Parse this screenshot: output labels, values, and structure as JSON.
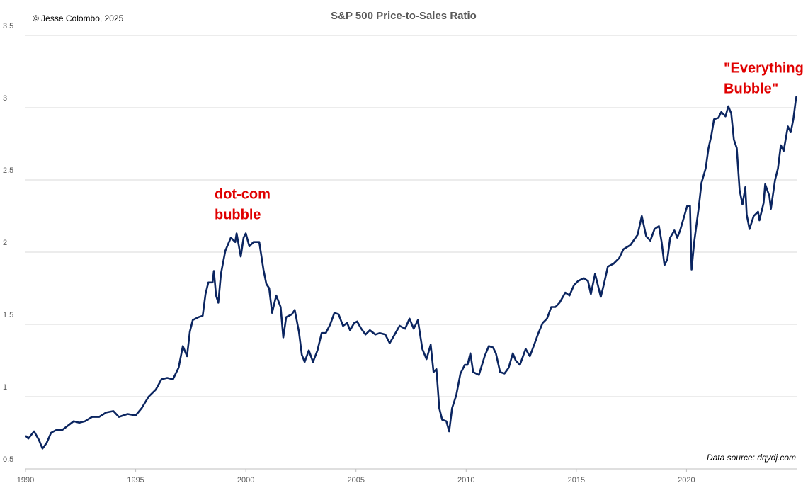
{
  "chart_data": {
    "type": "line",
    "title": "S&P 500 Price-to-Sales Ratio",
    "annotations": {
      "copyright": "© Jesse Colombo, 2025",
      "source": "Data source: dqydj.com",
      "dotcom": [
        "dot-com",
        "bubble"
      ],
      "everything": [
        "\"Everything",
        "Bubble\""
      ]
    },
    "color": "#0b2560",
    "annotation_color": "#e00000",
    "grid": true,
    "xlim": [
      1990,
      2025
    ],
    "xticks": [
      1990,
      1995,
      2000,
      2005,
      2010,
      2015,
      2020
    ],
    "ylim": [
      0.5,
      3.5
    ],
    "yticks": [
      0.5,
      1,
      1.5,
      2,
      2.5,
      3,
      3.5
    ],
    "x": [
      1990.0,
      1990.13,
      1990.39,
      1990.61,
      1990.77,
      1990.96,
      1991.16,
      1991.41,
      1991.67,
      1991.93,
      1992.19,
      1992.44,
      1992.7,
      1993.02,
      1993.34,
      1993.66,
      1993.99,
      1994.24,
      1994.63,
      1995.0,
      1995.27,
      1995.59,
      1995.92,
      1996.17,
      1996.43,
      1996.69,
      1996.95,
      1997.14,
      1997.33,
      1997.46,
      1997.59,
      1997.85,
      1998.04,
      1998.17,
      1998.3,
      1998.49,
      1998.55,
      1998.65,
      1998.75,
      1998.87,
      1999.07,
      1999.32,
      1999.52,
      1999.58,
      1999.77,
      1999.9,
      2000.0,
      2000.16,
      2000.35,
      2000.61,
      2000.8,
      2000.93,
      2001.06,
      2001.19,
      2001.38,
      2001.58,
      2001.7,
      2001.83,
      2002.09,
      2002.22,
      2002.41,
      2002.54,
      2002.67,
      2002.86,
      2003.05,
      2003.25,
      2003.44,
      2003.63,
      2003.83,
      2004.02,
      2004.21,
      2004.41,
      2004.6,
      2004.73,
      2004.92,
      2005.05,
      2005.24,
      2005.43,
      2005.63,
      2005.88,
      2006.08,
      2006.33,
      2006.53,
      2006.72,
      2006.98,
      2007.23,
      2007.43,
      2007.62,
      2007.81,
      2008.01,
      2008.2,
      2008.39,
      2008.52,
      2008.65,
      2008.78,
      2008.91,
      2009.1,
      2009.23,
      2009.36,
      2009.55,
      2009.74,
      2009.94,
      2010.06,
      2010.19,
      2010.32,
      2010.58,
      2010.84,
      2011.03,
      2011.22,
      2011.35,
      2011.54,
      2011.74,
      2011.93,
      2012.12,
      2012.25,
      2012.44,
      2012.7,
      2012.89,
      2013.09,
      2013.28,
      2013.47,
      2013.67,
      2013.86,
      2014.05,
      2014.24,
      2014.5,
      2014.69,
      2014.89,
      2015.08,
      2015.34,
      2015.53,
      2015.66,
      2015.85,
      2016.11,
      2016.24,
      2016.43,
      2016.69,
      2016.95,
      2017.14,
      2017.46,
      2017.78,
      2017.97,
      2018.17,
      2018.36,
      2018.55,
      2018.75,
      2018.87,
      2019.0,
      2019.13,
      2019.26,
      2019.45,
      2019.58,
      2019.71,
      2019.9,
      2020.03,
      2020.16,
      2020.23,
      2020.35,
      2020.55,
      2020.68,
      2020.87,
      2021.0,
      2021.13,
      2021.25,
      2021.45,
      2021.58,
      2021.77,
      2021.9,
      2022.03,
      2022.15,
      2022.28,
      2022.41,
      2022.54,
      2022.67,
      2022.73,
      2022.86,
      2023.05,
      2023.25,
      2023.31,
      2023.5,
      2023.57,
      2023.76,
      2023.83,
      2024.02,
      2024.15,
      2024.28,
      2024.41,
      2024.6,
      2024.73,
      2024.85,
      2024.95,
      2024.99
    ],
    "values": [
      0.73,
      0.71,
      0.76,
      0.7,
      0.64,
      0.68,
      0.75,
      0.77,
      0.77,
      0.8,
      0.83,
      0.82,
      0.83,
      0.86,
      0.86,
      0.89,
      0.9,
      0.86,
      0.88,
      0.87,
      0.92,
      1.0,
      1.05,
      1.12,
      1.13,
      1.12,
      1.2,
      1.35,
      1.28,
      1.45,
      1.53,
      1.55,
      1.56,
      1.71,
      1.79,
      1.79,
      1.87,
      1.7,
      1.65,
      1.85,
      2.01,
      2.1,
      2.07,
      2.13,
      1.97,
      2.1,
      2.13,
      2.04,
      2.07,
      2.07,
      1.88,
      1.78,
      1.75,
      1.58,
      1.7,
      1.62,
      1.41,
      1.55,
      1.57,
      1.6,
      1.45,
      1.29,
      1.24,
      1.32,
      1.24,
      1.32,
      1.44,
      1.44,
      1.5,
      1.58,
      1.57,
      1.49,
      1.51,
      1.46,
      1.51,
      1.52,
      1.47,
      1.43,
      1.46,
      1.43,
      1.44,
      1.43,
      1.37,
      1.42,
      1.49,
      1.47,
      1.54,
      1.47,
      1.53,
      1.33,
      1.26,
      1.36,
      1.17,
      1.19,
      0.92,
      0.84,
      0.83,
      0.76,
      0.92,
      1.01,
      1.16,
      1.22,
      1.22,
      1.3,
      1.17,
      1.15,
      1.28,
      1.35,
      1.34,
      1.3,
      1.17,
      1.16,
      1.2,
      1.3,
      1.25,
      1.22,
      1.33,
      1.28,
      1.36,
      1.44,
      1.51,
      1.54,
      1.62,
      1.62,
      1.65,
      1.72,
      1.7,
      1.77,
      1.8,
      1.82,
      1.8,
      1.71,
      1.85,
      1.69,
      1.77,
      1.9,
      1.92,
      1.96,
      2.02,
      2.05,
      2.12,
      2.25,
      2.11,
      2.08,
      2.16,
      2.18,
      2.07,
      1.91,
      1.95,
      2.1,
      2.15,
      2.1,
      2.15,
      2.25,
      2.32,
      2.32,
      1.88,
      2.07,
      2.3,
      2.48,
      2.58,
      2.72,
      2.81,
      2.92,
      2.93,
      2.97,
      2.94,
      3.01,
      2.96,
      2.78,
      2.72,
      2.43,
      2.33,
      2.45,
      2.26,
      2.16,
      2.25,
      2.28,
      2.22,
      2.34,
      2.47,
      2.39,
      2.3,
      2.5,
      2.58,
      2.74,
      2.7,
      2.87,
      2.83,
      2.92,
      3.04,
      3.08
    ]
  }
}
